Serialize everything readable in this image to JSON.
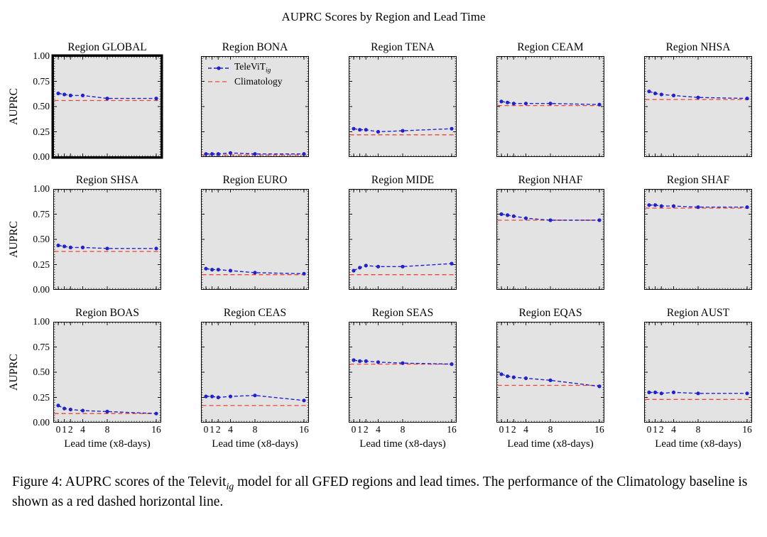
{
  "title": "AUPRC Scores by Region and Lead Time",
  "legend": {
    "televit_label": "TeleViT",
    "televit_sub": "ig",
    "climatology_label": "Climatology"
  },
  "axes": {
    "ylabel": "AUPRC",
    "xlabel": "Lead time (x8-days)",
    "yticks": [
      "0.00",
      "0.25",
      "0.50",
      "0.75",
      "1.00"
    ],
    "ytick_values": [
      0,
      0.25,
      0.5,
      0.75,
      1
    ],
    "xticks": [
      "0",
      "1",
      "2",
      "4",
      "8",
      "16"
    ],
    "xtick_values": [
      0,
      1,
      2,
      4,
      8,
      16
    ]
  },
  "colors": {
    "televit": "#2222cc",
    "climatology": "#ee4433",
    "plot_bg": "#e3e3e3"
  },
  "caption": {
    "prefix": "Figure 4: AUPRC scores of the Televit",
    "sub": "ig",
    "suffix": " model for all GFED regions and lead times. The performance of the Climatology baseline is shown as a red dashed horizontal line."
  },
  "chart_data": {
    "type": "line",
    "suptitle": "AUPRC Scores by Region and Lead Time",
    "x": [
      0,
      1,
      2,
      4,
      8,
      16
    ],
    "xlabel": "Lead time (x8-days)",
    "ylabel": "AUPRC",
    "ylim": [
      0,
      1
    ],
    "legend_entries": [
      "TeleViT_ig",
      "Climatology"
    ],
    "subplots": [
      {
        "title": "Region GLOBAL",
        "region": "GLOBAL",
        "televit": [
          0.63,
          0.62,
          0.61,
          0.61,
          0.58,
          0.58
        ],
        "climatology": 0.56,
        "highlight": true,
        "show_legend": false
      },
      {
        "title": "Region BONA",
        "region": "BONA",
        "televit": [
          0.03,
          0.03,
          0.03,
          0.04,
          0.03,
          0.03
        ],
        "climatology": 0.02,
        "highlight": false,
        "show_legend": true
      },
      {
        "title": "Region TENA",
        "region": "TENA",
        "televit": [
          0.28,
          0.27,
          0.27,
          0.25,
          0.26,
          0.28
        ],
        "climatology": 0.22,
        "highlight": false,
        "show_legend": false
      },
      {
        "title": "Region CEAM",
        "region": "CEAM",
        "televit": [
          0.55,
          0.54,
          0.53,
          0.53,
          0.53,
          0.52
        ],
        "climatology": 0.51,
        "highlight": false,
        "show_legend": false
      },
      {
        "title": "Region NHSA",
        "region": "NHSA",
        "televit": [
          0.65,
          0.63,
          0.62,
          0.61,
          0.59,
          0.58
        ],
        "climatology": 0.57,
        "highlight": false,
        "show_legend": false
      },
      {
        "title": "Region SHSA",
        "region": "SHSA",
        "televit": [
          0.44,
          0.43,
          0.42,
          0.42,
          0.41,
          0.41
        ],
        "climatology": 0.38,
        "highlight": false,
        "show_legend": false
      },
      {
        "title": "Region EURO",
        "region": "EURO",
        "televit": [
          0.21,
          0.2,
          0.2,
          0.19,
          0.17,
          0.16
        ],
        "climatology": 0.15,
        "highlight": false,
        "show_legend": false
      },
      {
        "title": "Region MIDE",
        "region": "MIDE",
        "televit": [
          0.19,
          0.22,
          0.24,
          0.23,
          0.23,
          0.26
        ],
        "climatology": 0.15,
        "highlight": false,
        "show_legend": false
      },
      {
        "title": "Region NHAF",
        "region": "NHAF",
        "televit": [
          0.75,
          0.74,
          0.73,
          0.71,
          0.69,
          0.69
        ],
        "climatology": 0.69,
        "highlight": false,
        "show_legend": false
      },
      {
        "title": "Region SHAF",
        "region": "SHAF",
        "televit": [
          0.84,
          0.84,
          0.83,
          0.83,
          0.82,
          0.82
        ],
        "climatology": 0.81,
        "highlight": false,
        "show_legend": false
      },
      {
        "title": "Region BOAS",
        "region": "BOAS",
        "televit": [
          0.17,
          0.14,
          0.13,
          0.12,
          0.11,
          0.09
        ],
        "climatology": 0.09,
        "highlight": false,
        "show_legend": false
      },
      {
        "title": "Region CEAS",
        "region": "CEAS",
        "televit": [
          0.26,
          0.26,
          0.25,
          0.26,
          0.27,
          0.22
        ],
        "climatology": 0.17,
        "highlight": false,
        "show_legend": false
      },
      {
        "title": "Region SEAS",
        "region": "SEAS",
        "televit": [
          0.62,
          0.61,
          0.61,
          0.6,
          0.59,
          0.58
        ],
        "climatology": 0.58,
        "highlight": false,
        "show_legend": false
      },
      {
        "title": "Region EQAS",
        "region": "EQAS",
        "televit": [
          0.48,
          0.46,
          0.45,
          0.44,
          0.42,
          0.36
        ],
        "climatology": 0.37,
        "highlight": false,
        "show_legend": false
      },
      {
        "title": "Region AUST",
        "region": "AUST",
        "televit": [
          0.3,
          0.3,
          0.29,
          0.3,
          0.29,
          0.29
        ],
        "climatology": 0.23,
        "highlight": false,
        "show_legend": false
      }
    ]
  }
}
